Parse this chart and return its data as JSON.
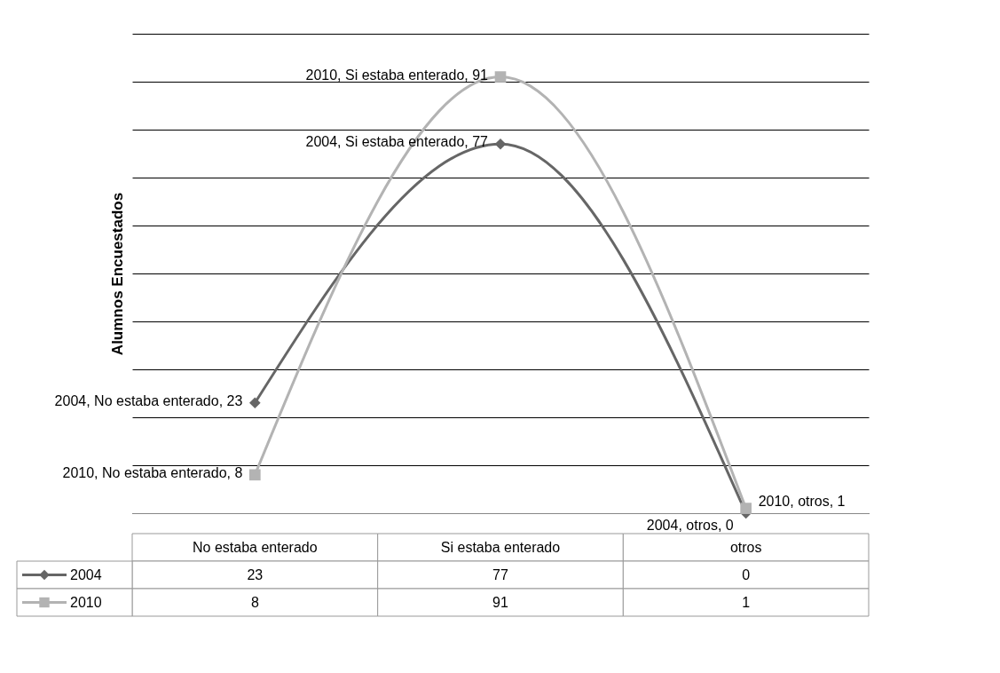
{
  "chart_data": {
    "type": "line",
    "ylabel": "Alumnos Encuestados",
    "categories": [
      "No estaba enterado",
      "Si estaba enterado",
      "otros"
    ],
    "series": [
      {
        "name": "2004",
        "color": "#666666",
        "marker": "diamond",
        "values": [
          23,
          77,
          0
        ]
      },
      {
        "name": "2010",
        "color": "#b3b3b3",
        "marker": "square",
        "values": [
          8,
          91,
          1
        ]
      }
    ],
    "annotations": [
      {
        "text": "2004, No estaba enterado, 23",
        "x": "No estaba enterado",
        "y": 23
      },
      {
        "text": "2004, Si estaba enterado, 77",
        "x": "Si estaba enterado",
        "y": 77
      },
      {
        "text": "2004, otros, 0",
        "x": "otros",
        "y": 0
      },
      {
        "text": "2010, No estaba enterado, 8",
        "x": "No estaba enterado",
        "y": 8
      },
      {
        "text": "2010, Si estaba enterado, 91",
        "x": "Si estaba enterado",
        "y": 91
      },
      {
        "text": "2010, otros, 1",
        "x": "otros",
        "y": 1
      }
    ],
    "ylim": [
      0,
      100
    ],
    "yticks": [
      {
        "value": 0,
        "label": null
      },
      {
        "value": 10,
        "label": null
      },
      {
        "value": 20,
        "label": null
      },
      {
        "value": 30,
        "label": null
      },
      {
        "value": 40,
        "label": null
      },
      {
        "value": 50,
        "label": null
      },
      {
        "value": 60,
        "label": null
      },
      {
        "value": 70,
        "label": null
      },
      {
        "value": 80,
        "label": null
      },
      {
        "value": 90,
        "label": null
      },
      {
        "value": 100,
        "label": null
      }
    ],
    "tick_labels": false,
    "grid": "y",
    "data_labels": true,
    "legend": "bottom left",
    "line_style": "solid"
  }
}
